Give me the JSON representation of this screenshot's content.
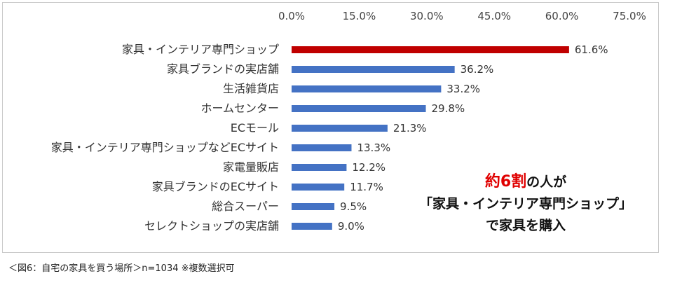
{
  "chart_data": {
    "type": "bar",
    "orientation": "horizontal",
    "categories": [
      "家具・インテリア専門ショップ",
      "家具ブランドの実店舗",
      "生活雑貨店",
      "ホームセンター",
      "ECモール",
      "家具・インテリア専門ショップなどECサイト",
      "家電量販店",
      "家具ブランドのECサイト",
      "総合スーパー",
      "セレクトショップの実店舗"
    ],
    "values": [
      61.6,
      36.2,
      33.2,
      29.8,
      21.3,
      13.3,
      12.2,
      11.7,
      9.5,
      9.0
    ],
    "value_labels": [
      "61.6%",
      "36.2%",
      "33.2%",
      "29.8%",
      "21.3%",
      "13.3%",
      "12.2%",
      "11.7%",
      "9.5%",
      "9.0%"
    ],
    "xlim": [
      0,
      75
    ],
    "ticks": [
      0,
      15,
      30,
      45,
      60,
      75
    ],
    "tick_labels": [
      "0.0%",
      "15.0%",
      "30.0%",
      "45.0%",
      "60.0%",
      "75.0%"
    ],
    "axis_position": "top",
    "grid": false,
    "colors": {
      "highlight": "#c00000",
      "default": "#4472c4"
    }
  },
  "callout": {
    "line1_highlight": "約6割",
    "line1_rest": "の人が",
    "line2": "「家具・インテリア専門ショップ」",
    "line3": "で家具を購入"
  },
  "caption": "＜図6：自宅の家具を買う場所＞n=1034 ※複数選択可"
}
